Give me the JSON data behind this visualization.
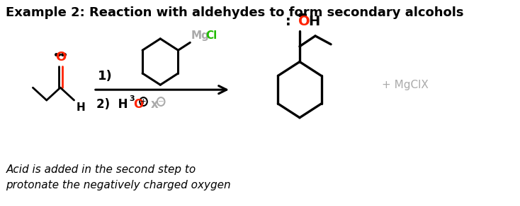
{
  "title": "Example 2: Reaction with aldehydes to form secondary alcohols",
  "subtitle_italic": "Acid is added in the second step to\nprotonate the negatively charged oxygen",
  "bg_color": "#ffffff",
  "title_fontsize": 13,
  "subtitle_fontsize": 11,
  "plus_mgclx": "+ MgClX",
  "red_color": "#ff2200",
  "green_color": "#22bb00",
  "gray_color": "#aaaaaa",
  "black_color": "#000000"
}
